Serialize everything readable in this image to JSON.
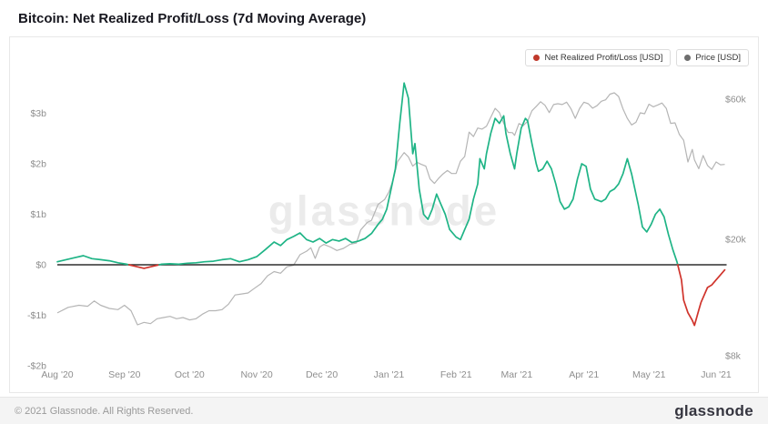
{
  "page": {
    "title": "Bitcoin: Net Realized Profit/Loss (7d Moving Average)"
  },
  "legend": {
    "items": [
      {
        "label": "Net Realized Profit/Loss [USD]",
        "color": "#c0392b"
      },
      {
        "label": "Price [USD]",
        "color": "#6e6e6e"
      }
    ]
  },
  "watermark": "glassnode",
  "footer": {
    "copyright": "© 2021 Glassnode. All Rights Reserved.",
    "brand": "glassnode"
  },
  "chart_data": {
    "type": "line",
    "title": "Bitcoin: Net Realized Profit/Loss (7d Moving Average)",
    "x_axis": {
      "unit": "days since 2020-08-01",
      "range": [
        0,
        308
      ],
      "ticks": [
        {
          "d": 0,
          "label": "Aug '20"
        },
        {
          "d": 31,
          "label": "Sep '20"
        },
        {
          "d": 61,
          "label": "Oct '20"
        },
        {
          "d": 92,
          "label": "Nov '20"
        },
        {
          "d": 122,
          "label": "Dec '20"
        },
        {
          "d": 153,
          "label": "Jan '21"
        },
        {
          "d": 184,
          "label": "Feb '21"
        },
        {
          "d": 212,
          "label": "Mar '21"
        },
        {
          "d": 243,
          "label": "Apr '21"
        },
        {
          "d": 273,
          "label": "May '21"
        },
        {
          "d": 304,
          "label": "Jun '21"
        }
      ]
    },
    "y_axis_left": {
      "label": "Net Realized Profit/Loss [USD]",
      "unit": "billions USD",
      "scale": "linear",
      "ticks": [
        {
          "v": 3,
          "label": "$3b"
        },
        {
          "v": 2,
          "label": "$2b"
        },
        {
          "v": 1,
          "label": "$1b"
        },
        {
          "v": 0,
          "label": "$0"
        },
        {
          "v": -1,
          "label": "-$1b"
        },
        {
          "v": -2,
          "label": "-$2b"
        }
      ]
    },
    "y_axis_right": {
      "label": "Price [USD]",
      "unit": "thousands USD",
      "scale": "log",
      "ticks": [
        {
          "v": 60,
          "label": "$60k"
        },
        {
          "v": 20,
          "label": "$20k"
        },
        {
          "v": 8,
          "label": "$8k"
        }
      ]
    },
    "zero_line": true,
    "grid": false,
    "legend_position": "top-right",
    "series": [
      {
        "id": "nrpl",
        "name": "Net Realized Profit/Loss [USD]",
        "unit": "billions USD",
        "color_positive": "#1fb486",
        "color_negative": "#d0342c",
        "points": [
          [
            0,
            0.06
          ],
          [
            4,
            0.1
          ],
          [
            8,
            0.14
          ],
          [
            12,
            0.18
          ],
          [
            16,
            0.12
          ],
          [
            20,
            0.1
          ],
          [
            24,
            0.08
          ],
          [
            28,
            0.04
          ],
          [
            32,
            0.01
          ],
          [
            36,
            -0.03
          ],
          [
            40,
            -0.07
          ],
          [
            44,
            -0.03
          ],
          [
            48,
            0.01
          ],
          [
            52,
            0.02
          ],
          [
            56,
            0.01
          ],
          [
            60,
            0.03
          ],
          [
            64,
            0.04
          ],
          [
            68,
            0.06
          ],
          [
            72,
            0.07
          ],
          [
            76,
            0.1
          ],
          [
            80,
            0.12
          ],
          [
            84,
            0.06
          ],
          [
            88,
            0.1
          ],
          [
            92,
            0.16
          ],
          [
            96,
            0.3
          ],
          [
            100,
            0.45
          ],
          [
            103,
            0.38
          ],
          [
            106,
            0.5
          ],
          [
            109,
            0.56
          ],
          [
            112,
            0.63
          ],
          [
            115,
            0.5
          ],
          [
            118,
            0.45
          ],
          [
            121,
            0.52
          ],
          [
            124,
            0.43
          ],
          [
            127,
            0.5
          ],
          [
            130,
            0.47
          ],
          [
            133,
            0.52
          ],
          [
            136,
            0.44
          ],
          [
            139,
            0.47
          ],
          [
            142,
            0.52
          ],
          [
            145,
            0.62
          ],
          [
            148,
            0.8
          ],
          [
            150,
            0.9
          ],
          [
            152,
            1.1
          ],
          [
            154,
            1.5
          ],
          [
            156,
            1.9
          ],
          [
            158,
            2.8
          ],
          [
            160,
            3.6
          ],
          [
            162,
            3.3
          ],
          [
            164,
            2.2
          ],
          [
            165,
            2.4
          ],
          [
            167,
            1.5
          ],
          [
            169,
            1.0
          ],
          [
            171,
            0.9
          ],
          [
            173,
            1.1
          ],
          [
            175,
            1.4
          ],
          [
            177,
            1.2
          ],
          [
            179,
            1.0
          ],
          [
            181,
            0.7
          ],
          [
            184,
            0.55
          ],
          [
            186,
            0.5
          ],
          [
            188,
            0.7
          ],
          [
            190,
            0.9
          ],
          [
            192,
            1.3
          ],
          [
            194,
            1.6
          ],
          [
            195,
            2.1
          ],
          [
            197,
            1.9
          ],
          [
            198,
            2.2
          ],
          [
            200,
            2.6
          ],
          [
            202,
            2.9
          ],
          [
            204,
            2.8
          ],
          [
            206,
            2.95
          ],
          [
            207,
            2.6
          ],
          [
            209,
            2.2
          ],
          [
            211,
            1.9
          ],
          [
            212,
            2.2
          ],
          [
            214,
            2.7
          ],
          [
            216,
            2.9
          ],
          [
            217,
            2.85
          ],
          [
            219,
            2.4
          ],
          [
            221,
            2.0
          ],
          [
            222,
            1.85
          ],
          [
            224,
            1.9
          ],
          [
            226,
            2.05
          ],
          [
            228,
            1.9
          ],
          [
            230,
            1.6
          ],
          [
            232,
            1.25
          ],
          [
            234,
            1.1
          ],
          [
            236,
            1.15
          ],
          [
            238,
            1.3
          ],
          [
            240,
            1.7
          ],
          [
            242,
            2.0
          ],
          [
            244,
            1.95
          ],
          [
            246,
            1.5
          ],
          [
            248,
            1.3
          ],
          [
            251,
            1.25
          ],
          [
            253,
            1.3
          ],
          [
            255,
            1.45
          ],
          [
            257,
            1.5
          ],
          [
            259,
            1.6
          ],
          [
            261,
            1.8
          ],
          [
            263,
            2.1
          ],
          [
            265,
            1.8
          ],
          [
            268,
            1.2
          ],
          [
            270,
            0.75
          ],
          [
            272,
            0.65
          ],
          [
            274,
            0.8
          ],
          [
            276,
            1.0
          ],
          [
            278,
            1.1
          ],
          [
            280,
            0.95
          ],
          [
            282,
            0.6
          ],
          [
            284,
            0.3
          ],
          [
            286,
            0.05
          ],
          [
            288,
            -0.3
          ],
          [
            289,
            -0.7
          ],
          [
            291,
            -0.95
          ],
          [
            293,
            -1.1
          ],
          [
            294,
            -1.2
          ],
          [
            296,
            -0.9
          ],
          [
            297,
            -0.75
          ],
          [
            299,
            -0.55
          ],
          [
            300,
            -0.45
          ],
          [
            302,
            -0.4
          ],
          [
            304,
            -0.3
          ],
          [
            306,
            -0.2
          ],
          [
            308,
            -0.1
          ]
        ]
      },
      {
        "id": "price",
        "name": "Price [USD]",
        "unit": "thousands USD",
        "color": "#b5b5b5",
        "points": [
          [
            0,
            11.2
          ],
          [
            5,
            11.7
          ],
          [
            10,
            11.9
          ],
          [
            14,
            11.8
          ],
          [
            17,
            12.3
          ],
          [
            20,
            11.9
          ],
          [
            24,
            11.6
          ],
          [
            28,
            11.5
          ],
          [
            31,
            11.9
          ],
          [
            34,
            11.4
          ],
          [
            37,
            10.2
          ],
          [
            40,
            10.4
          ],
          [
            43,
            10.3
          ],
          [
            46,
            10.7
          ],
          [
            49,
            10.8
          ],
          [
            52,
            10.9
          ],
          [
            55,
            10.7
          ],
          [
            58,
            10.8
          ],
          [
            61,
            10.6
          ],
          [
            64,
            10.7
          ],
          [
            67,
            11.1
          ],
          [
            70,
            11.4
          ],
          [
            73,
            11.4
          ],
          [
            76,
            11.5
          ],
          [
            79,
            12.0
          ],
          [
            82,
            12.9
          ],
          [
            85,
            13.0
          ],
          [
            88,
            13.1
          ],
          [
            91,
            13.6
          ],
          [
            94,
            14.1
          ],
          [
            97,
            15.0
          ],
          [
            100,
            15.5
          ],
          [
            103,
            15.3
          ],
          [
            106,
            16.1
          ],
          [
            109,
            16.3
          ],
          [
            112,
            17.7
          ],
          [
            115,
            18.2
          ],
          [
            117,
            18.7
          ],
          [
            119,
            17.2
          ],
          [
            121,
            18.8
          ],
          [
            123,
            19.2
          ],
          [
            126,
            18.8
          ],
          [
            129,
            18.3
          ],
          [
            132,
            18.6
          ],
          [
            135,
            19.2
          ],
          [
            138,
            19.4
          ],
          [
            140,
            21.5
          ],
          [
            143,
            22.8
          ],
          [
            145,
            23.2
          ],
          [
            148,
            26.3
          ],
          [
            151,
            27.3
          ],
          [
            153,
            29.0
          ],
          [
            155,
            31.9
          ],
          [
            157,
            36.8
          ],
          [
            160,
            39.5
          ],
          [
            162,
            38.2
          ],
          [
            164,
            35.5
          ],
          [
            166,
            36.6
          ],
          [
            168,
            36.0
          ],
          [
            170,
            35.5
          ],
          [
            172,
            32.1
          ],
          [
            174,
            31.0
          ],
          [
            176,
            32.3
          ],
          [
            178,
            33.4
          ],
          [
            180,
            34.3
          ],
          [
            182,
            33.5
          ],
          [
            184,
            33.5
          ],
          [
            186,
            36.9
          ],
          [
            188,
            38.3
          ],
          [
            190,
            46.4
          ],
          [
            192,
            44.8
          ],
          [
            194,
            47.9
          ],
          [
            196,
            47.5
          ],
          [
            198,
            48.6
          ],
          [
            200,
            52.1
          ],
          [
            202,
            55.9
          ],
          [
            204,
            54.1
          ],
          [
            206,
            49.7
          ],
          [
            208,
            46.3
          ],
          [
            210,
            46.2
          ],
          [
            211,
            45.2
          ],
          [
            213,
            49.6
          ],
          [
            215,
            48.8
          ],
          [
            217,
            50.5
          ],
          [
            219,
            54.9
          ],
          [
            221,
            56.8
          ],
          [
            223,
            58.9
          ],
          [
            225,
            57.3
          ],
          [
            227,
            54.1
          ],
          [
            229,
            57.6
          ],
          [
            231,
            58.0
          ],
          [
            233,
            57.6
          ],
          [
            235,
            58.7
          ],
          [
            237,
            55.8
          ],
          [
            239,
            51.7
          ],
          [
            241,
            55.9
          ],
          [
            243,
            58.7
          ],
          [
            245,
            58.0
          ],
          [
            247,
            56.0
          ],
          [
            249,
            57.1
          ],
          [
            251,
            59.1
          ],
          [
            253,
            59.8
          ],
          [
            255,
            62.5
          ],
          [
            257,
            63.2
          ],
          [
            259,
            61.4
          ],
          [
            261,
            55.7
          ],
          [
            263,
            51.7
          ],
          [
            265,
            49.1
          ],
          [
            267,
            50.1
          ],
          [
            269,
            54.0
          ],
          [
            271,
            53.6
          ],
          [
            273,
            57.8
          ],
          [
            275,
            56.6
          ],
          [
            277,
            57.4
          ],
          [
            279,
            58.3
          ],
          [
            281,
            55.9
          ],
          [
            283,
            49.7
          ],
          [
            285,
            49.9
          ],
          [
            287,
            45.6
          ],
          [
            289,
            43.5
          ],
          [
            291,
            36.7
          ],
          [
            293,
            40.5
          ],
          [
            294,
            37.3
          ],
          [
            296,
            34.8
          ],
          [
            298,
            38.6
          ],
          [
            300,
            35.7
          ],
          [
            302,
            34.6
          ],
          [
            304,
            36.7
          ],
          [
            306,
            35.9
          ],
          [
            308,
            36.0
          ]
        ]
      }
    ]
  }
}
